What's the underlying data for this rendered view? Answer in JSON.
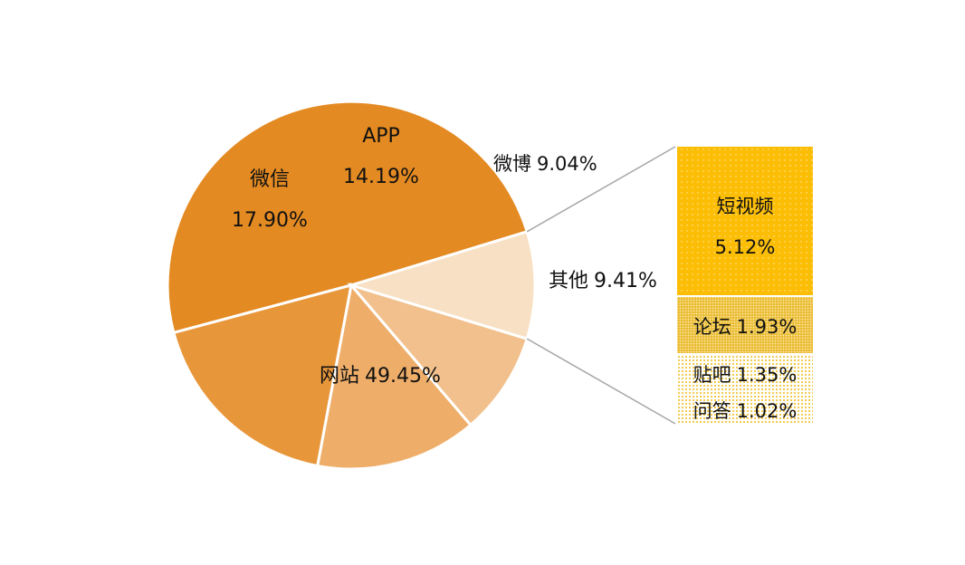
{
  "chart_data": {
    "type": "pie",
    "slices": [
      {
        "name": "网站",
        "value_label": "49.45%",
        "value": 49.45,
        "color": "#E48A22"
      },
      {
        "name": "微信",
        "value_label": "17.90%",
        "value": 17.9,
        "color": "#E8963A"
      },
      {
        "name": "APP",
        "value_label": "14.19%",
        "value": 14.19,
        "color": "#EEAE6A"
      },
      {
        "name": "微博",
        "value_label": "9.04%",
        "value": 9.04,
        "color": "#F1C08C"
      },
      {
        "name": "其他",
        "value_label": "9.41%",
        "value": 9.41,
        "color": "#F8E0C4"
      }
    ],
    "breakdown": {
      "of": "其他",
      "type": "stacked-bar",
      "segments": [
        {
          "name": "短视频",
          "value_label": "5.12%",
          "value": 5.12,
          "color": "#FCBD05"
        },
        {
          "name": "论坛",
          "value_label": "1.93%",
          "value": 1.93,
          "color": "#EFC238"
        },
        {
          "name": "贴吧",
          "value_label": "1.35%",
          "value": 1.35,
          "color": "#F7D96E"
        },
        {
          "name": "问答",
          "value_label": "1.02%",
          "value": 1.02,
          "color": "#F7D96E"
        }
      ]
    }
  }
}
